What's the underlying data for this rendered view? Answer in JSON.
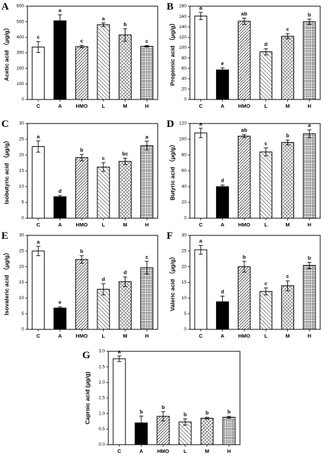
{
  "chart_data": [
    {
      "panel": "A",
      "type": "bar",
      "ylabel": "Acetic acid （μg/g）",
      "categories": [
        "C",
        "A",
        "HMO",
        "L",
        "M",
        "H"
      ],
      "values": [
        337,
        506,
        340,
        481,
        415,
        342
      ],
      "errors": [
        35,
        38,
        8,
        12,
        40,
        5
      ],
      "significance": [
        "c",
        "a",
        "c",
        "a",
        "b",
        "c"
      ],
      "ylim": [
        0,
        600
      ],
      "yticks": [
        0,
        100,
        200,
        300,
        400,
        500,
        600
      ]
    },
    {
      "panel": "B",
      "type": "bar",
      "ylabel": "Propionic acid （μg/g）",
      "categories": [
        "C",
        "A",
        "HMO",
        "L",
        "M",
        "H"
      ],
      "values": [
        161,
        57,
        151,
        92,
        122,
        150
      ],
      "errors": [
        7,
        4,
        6,
        6,
        5,
        5
      ],
      "significance": [
        "a",
        "e",
        "ab",
        "d",
        "c",
        "b"
      ],
      "ylim": [
        0,
        180
      ],
      "yticks": [
        0,
        20,
        40,
        60,
        80,
        100,
        120,
        140,
        160,
        180
      ]
    },
    {
      "panel": "C",
      "type": "bar",
      "ylabel": "Isobutyric acid （μg/g）",
      "categories": [
        "C",
        "A",
        "HMO",
        "L",
        "M",
        "H"
      ],
      "values": [
        22.7,
        6.8,
        19.2,
        16.2,
        18.0,
        23.0
      ],
      "errors": [
        1.8,
        0.4,
        1.0,
        1.4,
        1.0,
        1.4
      ],
      "significance": [
        "a",
        "d",
        "b",
        "c",
        "bc",
        "a"
      ],
      "ylim": [
        0,
        30
      ],
      "yticks": [
        0,
        5,
        10,
        15,
        20,
        25,
        30
      ]
    },
    {
      "panel": "D",
      "type": "bar",
      "ylabel": "Butyric acid （μg/g）",
      "categories": [
        "C",
        "A",
        "HMO",
        "L",
        "M",
        "H"
      ],
      "values": [
        108,
        40,
        104,
        84,
        96,
        107
      ],
      "errors": [
        6,
        2,
        2,
        5,
        3,
        5
      ],
      "significance": [
        "a",
        "d",
        "ab",
        "c",
        "b",
        "a"
      ],
      "ylim": [
        0,
        120
      ],
      "yticks": [
        0,
        20,
        40,
        60,
        80,
        100,
        120
      ]
    },
    {
      "panel": "E",
      "type": "bar",
      "ylabel": "Isovaleric acid （μg/g）",
      "categories": [
        "C",
        "A",
        "HMO",
        "L",
        "M",
        "H"
      ],
      "values": [
        25.0,
        6.8,
        22.3,
        12.8,
        15.2,
        19.7
      ],
      "errors": [
        1.5,
        0.4,
        1.2,
        1.8,
        1.5,
        2.0
      ],
      "significance": [
        "a",
        "e",
        "b",
        "d",
        "d",
        "c"
      ],
      "ylim": [
        0,
        30
      ],
      "yticks": [
        0,
        5,
        10,
        15,
        20,
        25,
        30
      ]
    },
    {
      "panel": "F",
      "type": "bar",
      "ylabel": "Valeric acid （μg/g）",
      "categories": [
        "C",
        "A",
        "HMO",
        "L",
        "M",
        "H"
      ],
      "values": [
        25.4,
        8.8,
        20.0,
        12.1,
        13.9,
        20.4
      ],
      "errors": [
        1.4,
        1.8,
        1.7,
        1.1,
        1.6,
        1.0
      ],
      "significance": [
        "a",
        "d",
        "b",
        "c",
        "c",
        "b"
      ],
      "ylim": [
        0,
        30
      ],
      "yticks": [
        0,
        5,
        10,
        15,
        20,
        25,
        30
      ]
    },
    {
      "panel": "G",
      "type": "bar",
      "ylabel": "Caproic acid (μg/g)",
      "categories": [
        "C",
        "A",
        "HMO",
        "L",
        "M",
        "H"
      ],
      "values": [
        2.76,
        0.7,
        0.91,
        0.73,
        0.85,
        0.88
      ],
      "errors": [
        0.09,
        0.22,
        0.15,
        0.1,
        0.03,
        0.03
      ],
      "significance": [
        "a",
        "b",
        "b",
        "b",
        "b",
        "b"
      ],
      "ylim": [
        0,
        3.0
      ],
      "yticks": [
        0,
        0.5,
        1.0,
        1.5,
        2.0,
        2.5,
        3.0
      ],
      "ytick_labels": [
        "0.0",
        "0.5",
        "1.0",
        "1.5",
        "2.0",
        "2.5",
        "3.0"
      ]
    }
  ],
  "bar_styles": {
    "C": "white",
    "A": "black",
    "HMO": "diagonal-dense",
    "L": "diagonal-sparse",
    "M": "cross-hatch",
    "H": "grid-fine"
  },
  "colors": {
    "axis": "#000000",
    "bar_edge": "#000000",
    "fill_dark": "#000000",
    "background": "#ffffff"
  }
}
